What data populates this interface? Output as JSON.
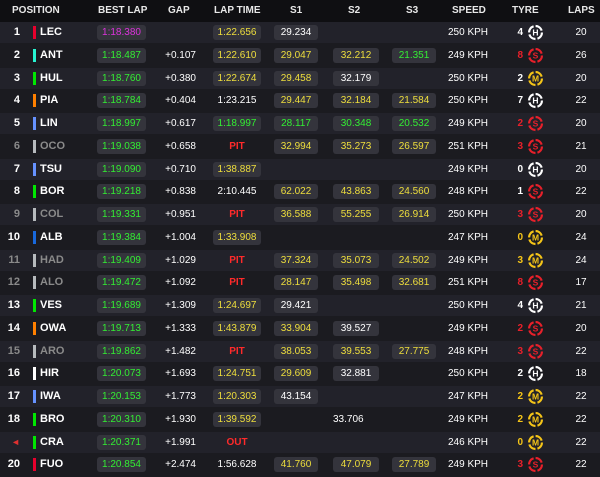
{
  "header": {
    "position": "POSITION",
    "best_lap": "BEST LAP",
    "gap": "GAP",
    "lap_time": "LAP TIME",
    "s1": "S1",
    "s2": "S2",
    "s3": "S3",
    "speed": "SPEED",
    "tyre": "TYRE",
    "laps": "LAPS"
  },
  "tyre_colors": {
    "S": "#e8202a",
    "M": "#f5c518",
    "H": "#ffffff"
  },
  "rows": [
    {
      "pos": "1",
      "code": "LEC",
      "team_color": "#e8002d",
      "best": "1:18.380",
      "best_purple": true,
      "gap": "",
      "lap": "1:22.656",
      "lap_style": "yellow",
      "s1": "29.234",
      "s1_style": "white",
      "s2": "",
      "s2_style": "white",
      "s3": "",
      "s3_style": "white",
      "speed": "250 KPH",
      "age": "4",
      "age_color": "#ffffff",
      "tyre": "H",
      "tyre_icon": "hard-tyre-icon",
      "laps": "20"
    },
    {
      "pos": "2",
      "code": "ANT",
      "team_color": "#27f4d2",
      "best": "1:18.487",
      "gap": "+0.107",
      "lap": "1:22.610",
      "lap_style": "yellow",
      "s1": "29.047",
      "s1_style": "yellow",
      "s2": "32.212",
      "s2_style": "yellow",
      "s3": "21.351",
      "s3_style": "green",
      "speed": "249 KPH",
      "age": "8",
      "age_color": "#e8202a",
      "tyre": "S",
      "tyre_icon": "soft-tyre-icon",
      "laps": "26"
    },
    {
      "pos": "3",
      "code": "HUL",
      "team_color": "#00e701",
      "best": "1:18.760",
      "gap": "+0.380",
      "lap": "1:22.674",
      "lap_style": "yellow",
      "s1": "29.458",
      "s1_style": "yellow",
      "s2": "32.179",
      "s2_style": "white",
      "s3": "",
      "s3_style": "white",
      "speed": "250 KPH",
      "age": "2",
      "age_color": "#ffffff",
      "tyre": "M",
      "tyre_icon": "medium-tyre-icon",
      "laps": "20"
    },
    {
      "pos": "4",
      "code": "PIA",
      "team_color": "#ff8000",
      "best": "1:18.784",
      "gap": "+0.404",
      "lap": "1:23.215",
      "lap_style": "plain",
      "s1": "29.447",
      "s1_style": "yellow",
      "s2": "32.184",
      "s2_style": "yellow",
      "s3": "21.584",
      "s3_style": "yellow",
      "speed": "250 KPH",
      "age": "7",
      "age_color": "#ffffff",
      "tyre": "H",
      "tyre_icon": "hard-tyre-icon",
      "laps": "22"
    },
    {
      "pos": "5",
      "code": "LIN",
      "team_color": "#6692ff",
      "best": "1:18.997",
      "gap": "+0.617",
      "lap": "1:18.997",
      "lap_style": "green",
      "s1": "28.117",
      "s1_style": "green",
      "s2": "30.348",
      "s2_style": "green",
      "s3": "20.532",
      "s3_style": "green",
      "speed": "249 KPH",
      "age": "2",
      "age_color": "#e8202a",
      "tyre": "S",
      "tyre_icon": "soft-tyre-icon",
      "laps": "20"
    },
    {
      "pos": "6",
      "code": "OCO",
      "team_color": "#b6babd",
      "retired": true,
      "best": "1:19.038",
      "gap": "+0.658",
      "lap": "PIT",
      "lap_style": "pit",
      "s1": "32.994",
      "s1_style": "yellow",
      "s2": "35.273",
      "s2_style": "yellow",
      "s3": "26.597",
      "s3_style": "yellow",
      "speed": "251 KPH",
      "age": "3",
      "age_color": "#e8202a",
      "tyre": "S",
      "tyre_icon": "soft-tyre-icon",
      "laps": "21"
    },
    {
      "pos": "7",
      "code": "TSU",
      "team_color": "#6692ff",
      "best": "1:19.090",
      "gap": "+0.710",
      "lap": "1:38.887",
      "lap_style": "yellow",
      "s1": "",
      "s1_style": "white",
      "s2": "",
      "s2_style": "white",
      "s3": "",
      "s3_style": "white",
      "speed": "249 KPH",
      "age": "0",
      "age_color": "#ffffff",
      "tyre": "H",
      "tyre_icon": "hard-tyre-icon",
      "laps": "20"
    },
    {
      "pos": "8",
      "code": "BOR",
      "team_color": "#00e701",
      "best": "1:19.218",
      "gap": "+0.838",
      "lap": "2:10.445",
      "lap_style": "plain",
      "s1": "62.022",
      "s1_style": "yellow",
      "s2": "43.863",
      "s2_style": "yellow",
      "s3": "24.560",
      "s3_style": "yellow",
      "speed": "248 KPH",
      "age": "1",
      "age_color": "#ffffff",
      "tyre": "S",
      "tyre_icon": "soft-tyre-icon",
      "laps": "22"
    },
    {
      "pos": "9",
      "code": "COL",
      "team_color": "#b6babd",
      "retired": true,
      "best": "1:19.331",
      "gap": "+0.951",
      "lap": "PIT",
      "lap_style": "pit",
      "s1": "36.588",
      "s1_style": "yellow",
      "s2": "55.255",
      "s2_style": "yellow",
      "s3": "26.914",
      "s3_style": "yellow",
      "speed": "250 KPH",
      "age": "3",
      "age_color": "#e8202a",
      "tyre": "S",
      "tyre_icon": "soft-tyre-icon",
      "laps": "20"
    },
    {
      "pos": "10",
      "code": "ALB",
      "team_color": "#1868db",
      "best": "1:19.384",
      "gap": "+1.004",
      "lap": "1:33.908",
      "lap_style": "yellow",
      "s1": "",
      "s1_style": "white",
      "s2": "",
      "s2_style": "white",
      "s3": "",
      "s3_style": "white",
      "speed": "247 KPH",
      "age": "0",
      "age_color": "#f5c518",
      "tyre": "M",
      "tyre_icon": "medium-tyre-icon",
      "laps": "24"
    },
    {
      "pos": "11",
      "code": "HAD",
      "team_color": "#b6babd",
      "retired": true,
      "best": "1:19.409",
      "gap": "+1.029",
      "lap": "PIT",
      "lap_style": "pit",
      "s1": "37.324",
      "s1_style": "yellow",
      "s2": "35.073",
      "s2_style": "yellow",
      "s3": "24.502",
      "s3_style": "yellow",
      "speed": "249 KPH",
      "age": "3",
      "age_color": "#f5c518",
      "tyre": "M",
      "tyre_icon": "medium-tyre-icon",
      "laps": "24"
    },
    {
      "pos": "12",
      "code": "ALO",
      "team_color": "#b6babd",
      "retired": true,
      "best": "1:19.472",
      "gap": "+1.092",
      "lap": "PIT",
      "lap_style": "pit",
      "s1": "28.147",
      "s1_style": "yellow",
      "s2": "35.498",
      "s2_style": "yellow",
      "s3": "32.681",
      "s3_style": "yellow",
      "speed": "251 KPH",
      "age": "8",
      "age_color": "#e8202a",
      "tyre": "S",
      "tyre_icon": "soft-tyre-icon",
      "laps": "17"
    },
    {
      "pos": "13",
      "code": "VES",
      "team_color": "#00e701",
      "best": "1:19.689",
      "gap": "+1.309",
      "lap": "1:24.697",
      "lap_style": "yellow",
      "s1": "29.421",
      "s1_style": "white",
      "s2": "",
      "s2_style": "white",
      "s3": "",
      "s3_style": "white",
      "speed": "250 KPH",
      "age": "4",
      "age_color": "#ffffff",
      "tyre": "H",
      "tyre_icon": "hard-tyre-icon",
      "laps": "21"
    },
    {
      "pos": "14",
      "code": "OWA",
      "team_color": "#ff8000",
      "best": "1:19.713",
      "gap": "+1.333",
      "lap": "1:43.879",
      "lap_style": "yellow",
      "s1": "33.904",
      "s1_style": "yellow",
      "s2": "39.527",
      "s2_style": "white",
      "s3": "",
      "s3_style": "white",
      "speed": "249 KPH",
      "age": "2",
      "age_color": "#e8202a",
      "tyre": "S",
      "tyre_icon": "soft-tyre-icon",
      "laps": "20"
    },
    {
      "pos": "15",
      "code": "ARO",
      "team_color": "#b6babd",
      "retired": true,
      "best": "1:19.862",
      "gap": "+1.482",
      "lap": "PIT",
      "lap_style": "pit",
      "s1": "38.053",
      "s1_style": "yellow",
      "s2": "39.553",
      "s2_style": "yellow",
      "s3": "27.775",
      "s3_style": "yellow",
      "speed": "248 KPH",
      "age": "3",
      "age_color": "#e8202a",
      "tyre": "S",
      "tyre_icon": "soft-tyre-icon",
      "laps": "22"
    },
    {
      "pos": "16",
      "code": "HIR",
      "team_color": "#ffffff",
      "best": "1:20.073",
      "gap": "+1.693",
      "lap": "1:24.751",
      "lap_style": "yellow",
      "s1": "29.609",
      "s1_style": "yellow",
      "s2": "32.881",
      "s2_style": "white",
      "s3": "",
      "s3_style": "white",
      "speed": "250 KPH",
      "age": "2",
      "age_color": "#ffffff",
      "tyre": "H",
      "tyre_icon": "hard-tyre-icon",
      "laps": "18"
    },
    {
      "pos": "17",
      "code": "IWA",
      "team_color": "#6692ff",
      "best": "1:20.153",
      "gap": "+1.773",
      "lap": "1:20.303",
      "lap_style": "yellow",
      "s1": "43.154",
      "s1_style": "white",
      "s2": "",
      "s2_style": "white",
      "s3": "",
      "s3_style": "white",
      "speed": "247 KPH",
      "age": "2",
      "age_color": "#f5c518",
      "tyre": "M",
      "tyre_icon": "medium-tyre-icon",
      "laps": "22"
    },
    {
      "pos": "18",
      "code": "BRO",
      "team_color": "#00e701",
      "best": "1:20.310",
      "gap": "+1.930",
      "lap": "1:39.592",
      "lap_style": "yellow",
      "s1": "",
      "s1_style": "white",
      "s2": "33.706",
      "s2_style": "plain",
      "s3": "",
      "s3_style": "white",
      "speed": "249 KPH",
      "age": "2",
      "age_color": "#f5c518",
      "tyre": "M",
      "tyre_icon": "medium-tyre-icon",
      "laps": "22"
    },
    {
      "pos": "◄",
      "pos_flag": true,
      "code": "CRA",
      "team_color": "#00e701",
      "best": "1:20.371",
      "gap": "+1.991",
      "lap": "OUT",
      "lap_style": "pit",
      "s1": "",
      "s1_style": "white",
      "s2": "",
      "s2_style": "white",
      "s3": "",
      "s3_style": "white",
      "speed": "246 KPH",
      "age": "0",
      "age_color": "#f5c518",
      "tyre": "M",
      "tyre_icon": "medium-tyre-icon",
      "laps": "22"
    },
    {
      "pos": "20",
      "code": "FUO",
      "team_color": "#e8002d",
      "best": "1:20.854",
      "gap": "+2.474",
      "lap": "1:56.628",
      "lap_style": "plain",
      "s1": "41.760",
      "s1_style": "yellow",
      "s2": "47.079",
      "s2_style": "yellow",
      "s3": "27.789",
      "s3_style": "yellow",
      "speed": "249 KPH",
      "age": "3",
      "age_color": "#e8202a",
      "tyre": "S",
      "tyre_icon": "soft-tyre-icon",
      "laps": "22"
    }
  ]
}
